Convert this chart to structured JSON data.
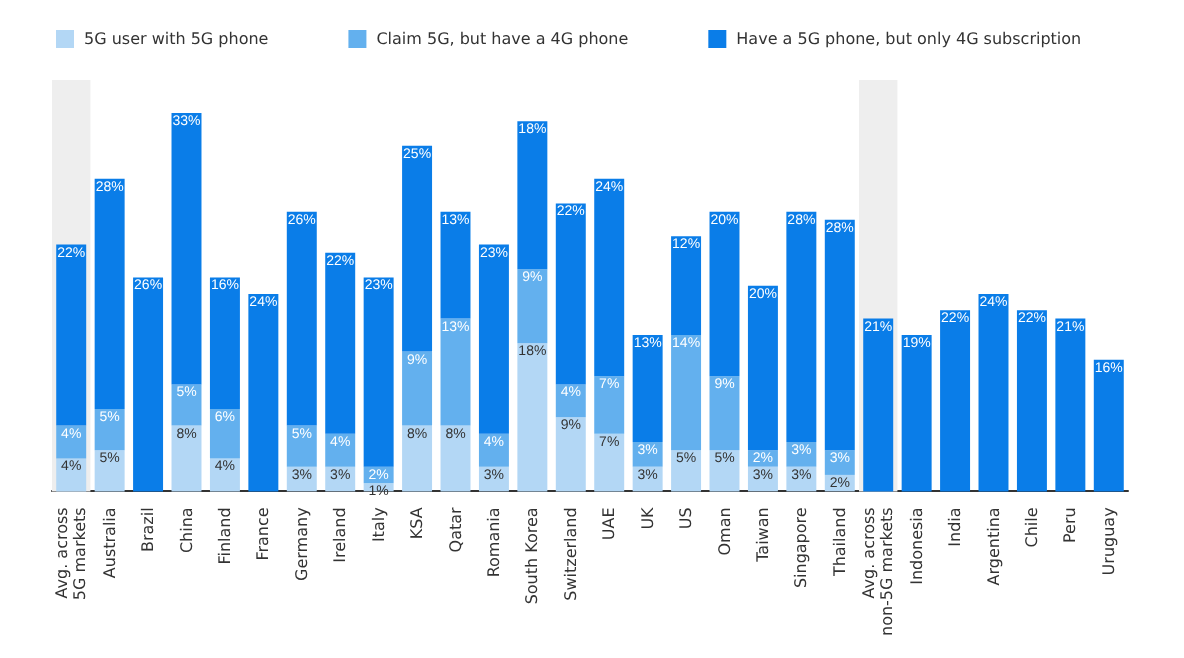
{
  "chart_data": {
    "type": "bar",
    "stacked": true,
    "legend": "top left",
    "categories": [
      "Avg. across\n5G markets",
      "Australia",
      "Brazil",
      "China",
      "Finland",
      "France",
      "Germany",
      "Ireland",
      "Italy",
      "KSA",
      "Qatar",
      "Romania",
      "South Korea",
      "Switzerland",
      "UAE",
      "UK",
      "US",
      "Oman",
      "Taiwan",
      "Singapore",
      "Thailand",
      "Avg. across\nnon-5G markets",
      "Indonesia",
      "India",
      "Argentina",
      "Chile",
      "Peru",
      "Uruguay"
    ],
    "series": [
      {
        "name": "5G user with 5G phone",
        "color": "#b3d7f5",
        "values": [
          4,
          5,
          null,
          8,
          4,
          null,
          3,
          3,
          1,
          8,
          8,
          3,
          18,
          9,
          7,
          3,
          5,
          5,
          3,
          3,
          2,
          null,
          null,
          null,
          null,
          null,
          null,
          null
        ],
        "value_labels": [
          "4%",
          "5%",
          null,
          "8%",
          "4%",
          null,
          "3%",
          "3%",
          "1%",
          "8%",
          "8%",
          "3%",
          "18%",
          "9%",
          "7%",
          "3%",
          "5%",
          "5%",
          "3%",
          "3%",
          "2%",
          null,
          null,
          null,
          null,
          null,
          null,
          null
        ]
      },
      {
        "name": "Claim 5G, but have a 4G phone",
        "color": "#63b0ee",
        "values": [
          4,
          5,
          null,
          5,
          6,
          null,
          5,
          4,
          2,
          9,
          13,
          4,
          9,
          4,
          7,
          3,
          14,
          9,
          2,
          3,
          3,
          null,
          null,
          null,
          null,
          null,
          null,
          null
        ],
        "value_labels": [
          "4%",
          "5%",
          null,
          "5%",
          "6%",
          null,
          "5%",
          "4%",
          "2%",
          "9%",
          "13%",
          "4%",
          "9%",
          "4%",
          "7%",
          "3%",
          "14%",
          "9%",
          "2%",
          "3%",
          "3%",
          null,
          null,
          null,
          null,
          null,
          null,
          null
        ]
      },
      {
        "name": "Have a 5G phone, but only 4G subscription",
        "color": "#0a7de8",
        "values": [
          22,
          28,
          26,
          33,
          16,
          24,
          26,
          22,
          23,
          25,
          13,
          23,
          18,
          22,
          24,
          13,
          12,
          20,
          20,
          28,
          28,
          21,
          19,
          22,
          24,
          22,
          21,
          16
        ],
        "value_labels": [
          "22%",
          "28%",
          "26%",
          "33%",
          "16%",
          "24%",
          "26%",
          "22%",
          "23%",
          "25%",
          "13%",
          "23%",
          "18%",
          "22%",
          "24%",
          "13%",
          "12%",
          "20%",
          "20%",
          "28%",
          "28%",
          "21%",
          "19%",
          "22%",
          "24%",
          "22%",
          "21%",
          "16%"
        ]
      }
    ],
    "bands": [
      {
        "axis": "x",
        "from": "Avg. across\n5G markets",
        "to": "Avg. across\n5G markets",
        "color": "#eeeeee"
      },
      {
        "axis": "x",
        "from": "Avg. across\nnon-5G markets",
        "to": "Avg. across\nnon-5G markets",
        "color": "#eeeeee"
      }
    ]
  }
}
